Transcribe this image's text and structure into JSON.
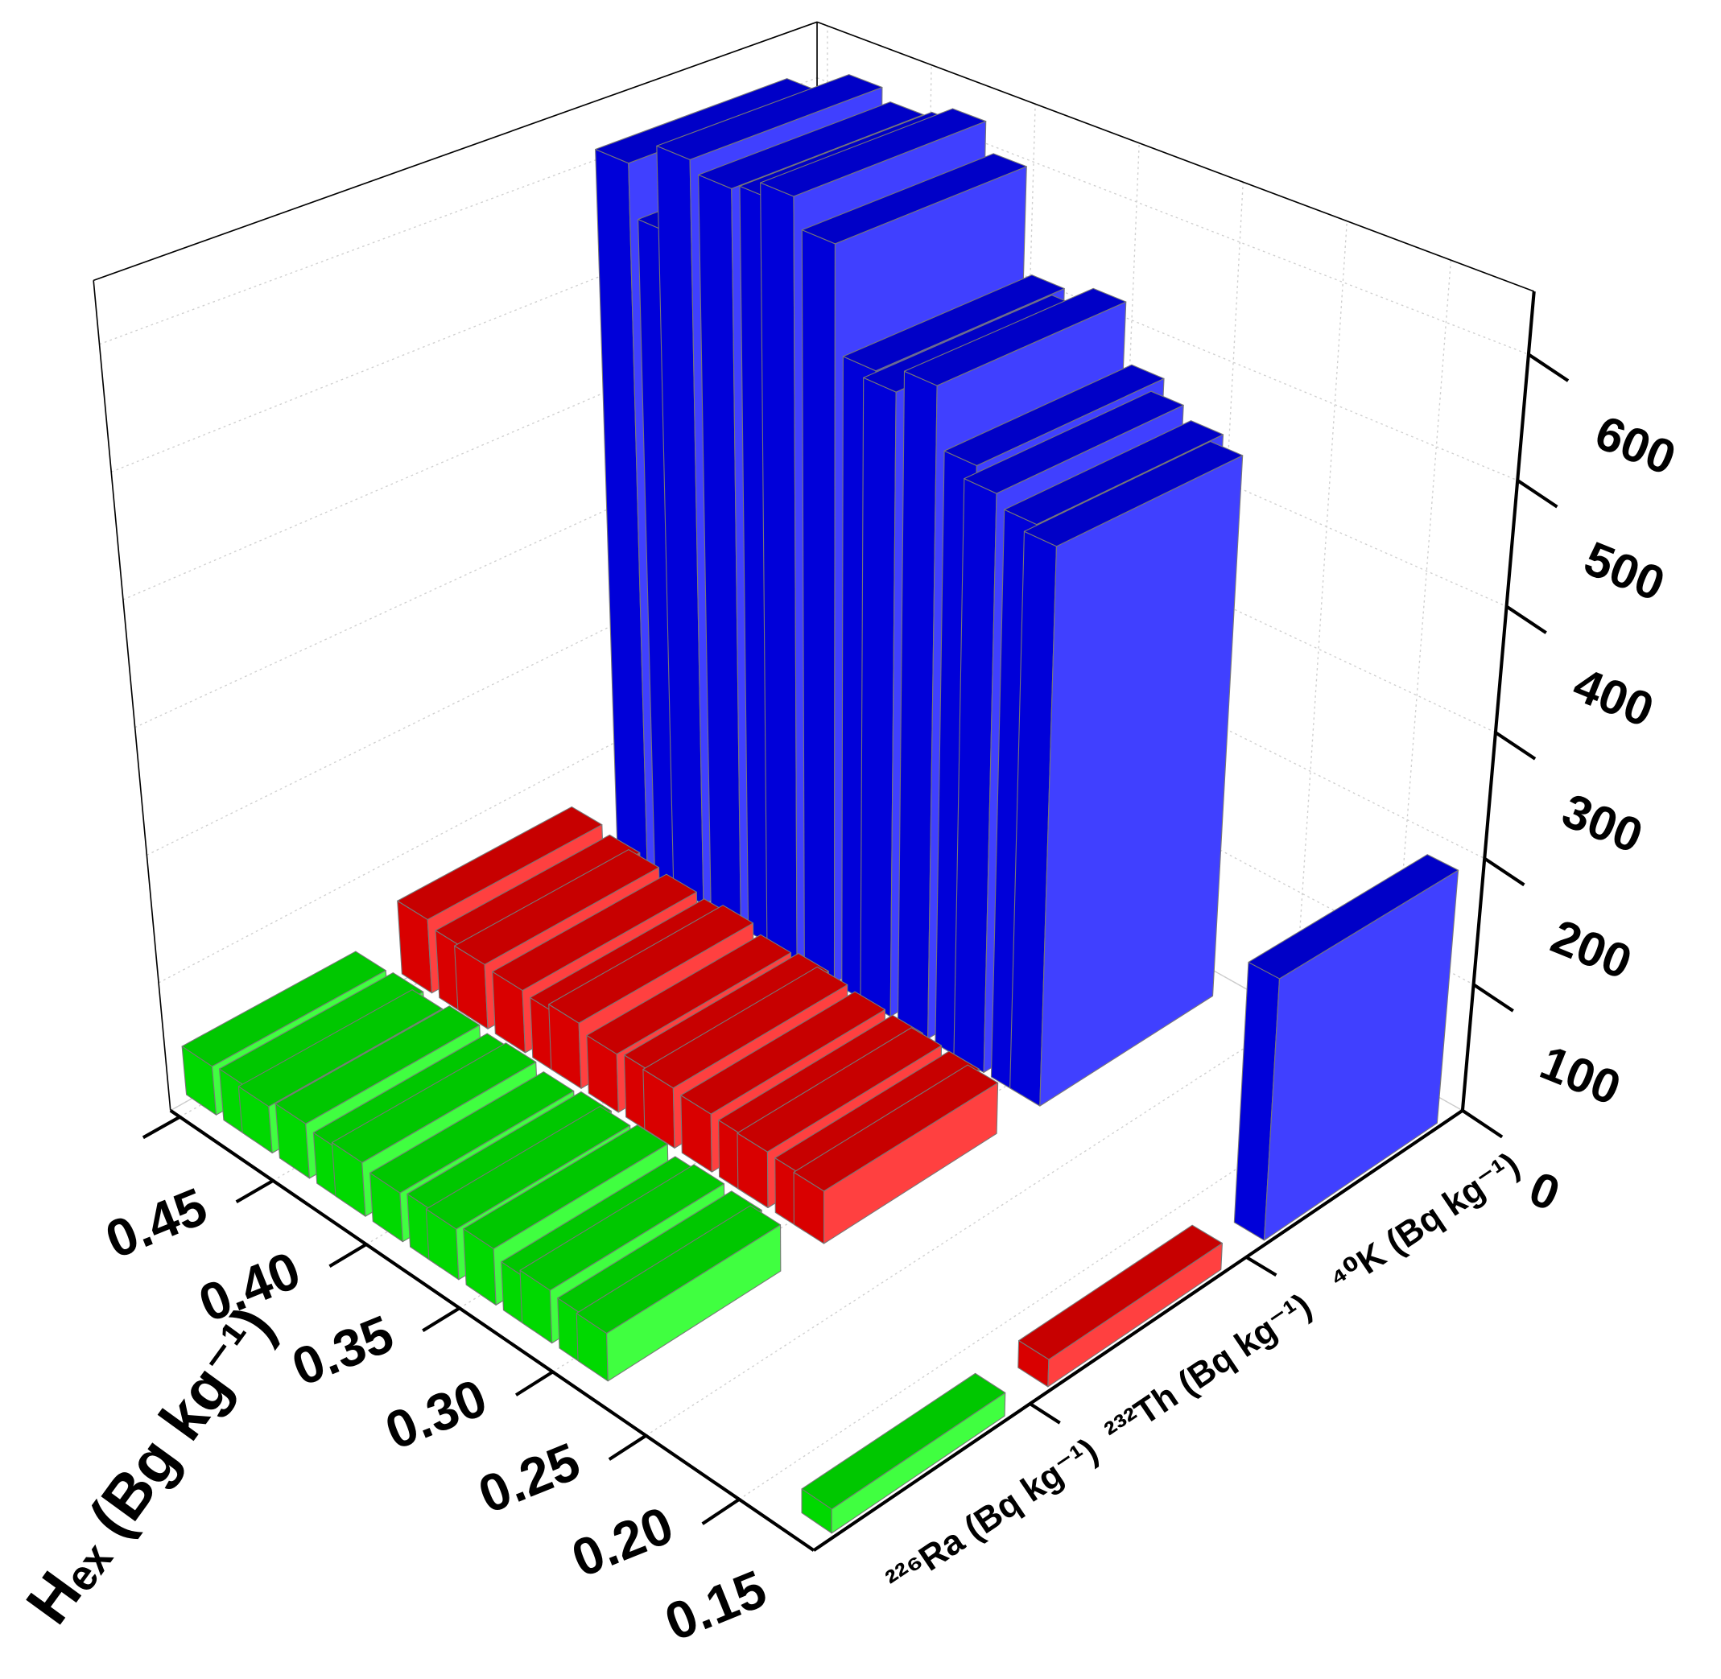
{
  "chart_data": {
    "type": "bar3d",
    "x_label": "Hₑₓ (Bg kg⁻¹)",
    "categories": [
      "²²⁶Ra (Bq kg⁻¹)",
      "²³²Th (Bq kg⁻¹)",
      "⁴⁰K (Bq kg⁻¹)"
    ],
    "x": [
      0.45,
      0.43,
      0.42,
      0.4,
      0.38,
      0.37,
      0.35,
      0.33,
      0.32,
      0.3,
      0.28,
      0.27,
      0.25,
      0.24,
      0.12
    ],
    "series": [
      {
        "color": "#00ff00",
        "values": [
          38,
          40,
          36,
          42,
          39,
          41,
          37,
          40,
          38,
          42,
          36,
          39,
          37,
          35,
          17
        ]
      },
      {
        "color": "#ff0000",
        "values": [
          60,
          55,
          52,
          50,
          48,
          52,
          46,
          49,
          47,
          45,
          44,
          43,
          42,
          40,
          20
        ]
      },
      {
        "color": "#0000ff",
        "values": [
          605,
          560,
          630,
          620,
          625,
          635,
          610,
          520,
          510,
          530,
          480,
          465,
          455,
          445,
          200
        ]
      }
    ],
    "xlim": [
      0.11,
      0.455
    ],
    "xticks": [
      0.15,
      {
        "value": 0.2,
        "label": "0.20"
      },
      0.25,
      {
        "value": 0.3,
        "label": "0.30"
      },
      0.35,
      {
        "value": 0.4,
        "label": "0.40"
      },
      0.45
    ],
    "ylim": [
      0,
      650
    ],
    "yticks": [
      0,
      100,
      200,
      300,
      400,
      500,
      600
    ],
    "grid": true
  }
}
